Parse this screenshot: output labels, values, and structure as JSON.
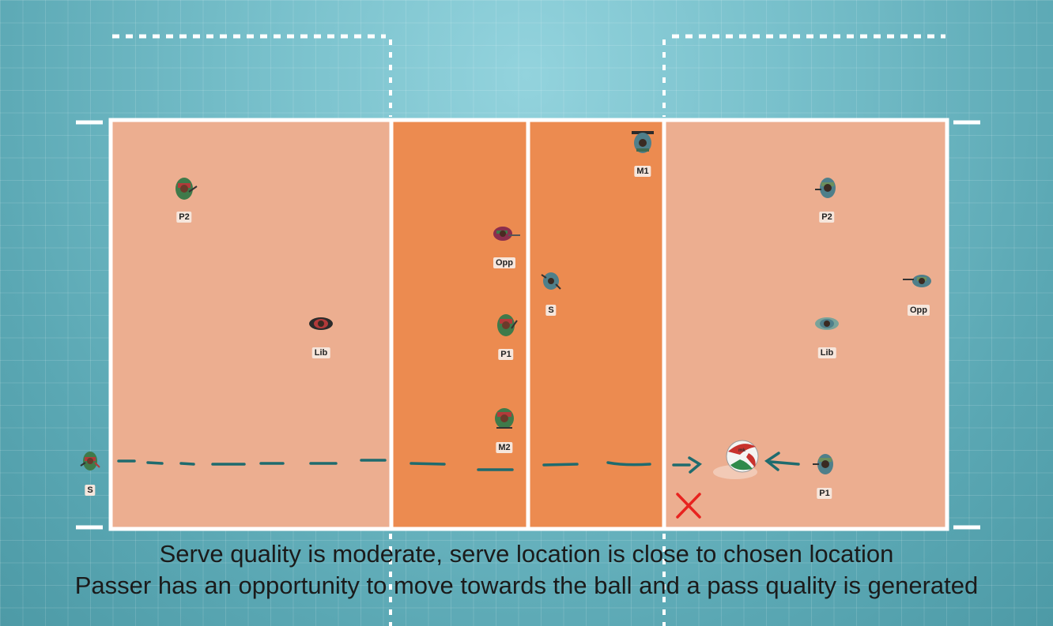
{
  "players": {
    "left": {
      "p2": "P2",
      "lib": "Lib",
      "opp": "Opp",
      "p1": "P1",
      "m2": "M2",
      "s": "S"
    },
    "right": {
      "m1": "M1",
      "s": "S",
      "p2": "P2",
      "opp": "Opp",
      "lib": "Lib",
      "p1": "P1"
    }
  },
  "jersey_colors": {
    "left_team": "#3f7a4a",
    "left_accent": "#b23a3a",
    "right_team": "#4f7f8a",
    "right_accent": "#6b8f5e"
  },
  "markers": {
    "miss": "x-mark",
    "ball": "volleyball-icon"
  },
  "caption": {
    "line1": "Serve quality is moderate, serve location is close to chosen location",
    "line2": "Passer has an opportunity to move towards the ball and a pass quality is generated"
  }
}
